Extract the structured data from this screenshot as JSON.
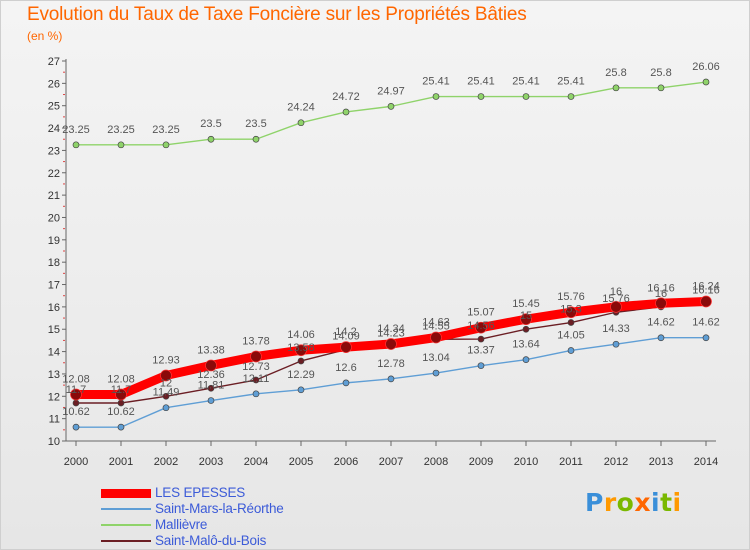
{
  "title": "Evolution du Taux de Taxe Foncière sur les Propriétés Bâties",
  "unit_label": "(en %)",
  "logo": {
    "text": "Proxiti"
  },
  "colors": {
    "title": "#ff6600",
    "legend_text": "#3c5bd8",
    "LES EPESSES": "#ff0000",
    "Saint-Mars-la-Réorthe": "#5f9ed5",
    "Mallièvre": "#8fd36a",
    "Saint-Malô-du-Bois": "#6b1e24"
  },
  "chart_data": {
    "type": "line",
    "ylim": [
      10,
      27
    ],
    "yticks": [
      10,
      11,
      12,
      13,
      14,
      15,
      16,
      17,
      18,
      19,
      20,
      21,
      22,
      23,
      24,
      25,
      26,
      27
    ],
    "x": [
      "2000",
      "2001",
      "2002",
      "2003",
      "2004",
      "2005",
      "2006",
      "2007",
      "2008",
      "2009",
      "2010",
      "2011",
      "2012",
      "2013",
      "2014"
    ],
    "grid": false,
    "legend_position": "bottom-left",
    "series": [
      {
        "name": "LES EPESSES",
        "values": [
          12.08,
          12.08,
          12.93,
          13.38,
          13.78,
          14.06,
          14.2,
          14.34,
          14.63,
          15.07,
          15.45,
          15.76,
          16.0,
          16.16,
          16.24
        ]
      },
      {
        "name": "Saint-Mars-la-Réorthe",
        "values": [
          10.62,
          10.62,
          11.49,
          11.81,
          12.11,
          12.29,
          12.6,
          12.78,
          13.04,
          13.37,
          13.64,
          14.05,
          14.33,
          14.62,
          14.62
        ]
      },
      {
        "name": "Mallièvre",
        "values": [
          23.25,
          23.25,
          23.25,
          23.5,
          23.5,
          24.24,
          24.72,
          24.97,
          25.41,
          25.41,
          25.41,
          25.41,
          25.8,
          25.8,
          26.06
        ]
      },
      {
        "name": "Saint-Malô-du-Bois",
        "values": [
          11.7,
          11.7,
          12.0,
          12.36,
          12.73,
          13.58,
          14.09,
          14.23,
          14.55,
          14.56,
          15.0,
          15.3,
          15.76,
          16.0,
          16.16
        ]
      }
    ],
    "data_labels": [
      [
        "12.08",
        "12.08",
        "12.93",
        "13.38",
        "13.78",
        "14.06",
        "14.2",
        "14.34",
        "14.63",
        "15.07",
        "15.45",
        "15.76",
        "16",
        "16.16",
        "16.24"
      ],
      [
        "10.62",
        "10.62",
        "11.49",
        "11.81",
        "12.11",
        "12.29",
        "12.6",
        "12.78",
        "13.04",
        "13.37",
        "13.64",
        "14.05",
        "14.33",
        "14.62",
        "14.62"
      ],
      [
        "23.25",
        "23.25",
        "23.25",
        "23.5",
        "23.5",
        "24.24",
        "24.72",
        "24.97",
        "25.41",
        "25.41",
        "25.41",
        "25.41",
        "25.8",
        "25.8",
        "26.06"
      ],
      [
        "11.7",
        "11.7",
        "12",
        "12.36",
        "12.73",
        "13.58",
        "14.09",
        "14.23",
        "14.55",
        "14.56",
        "15",
        "15.3",
        "15.76",
        "16",
        "16.16"
      ]
    ]
  }
}
